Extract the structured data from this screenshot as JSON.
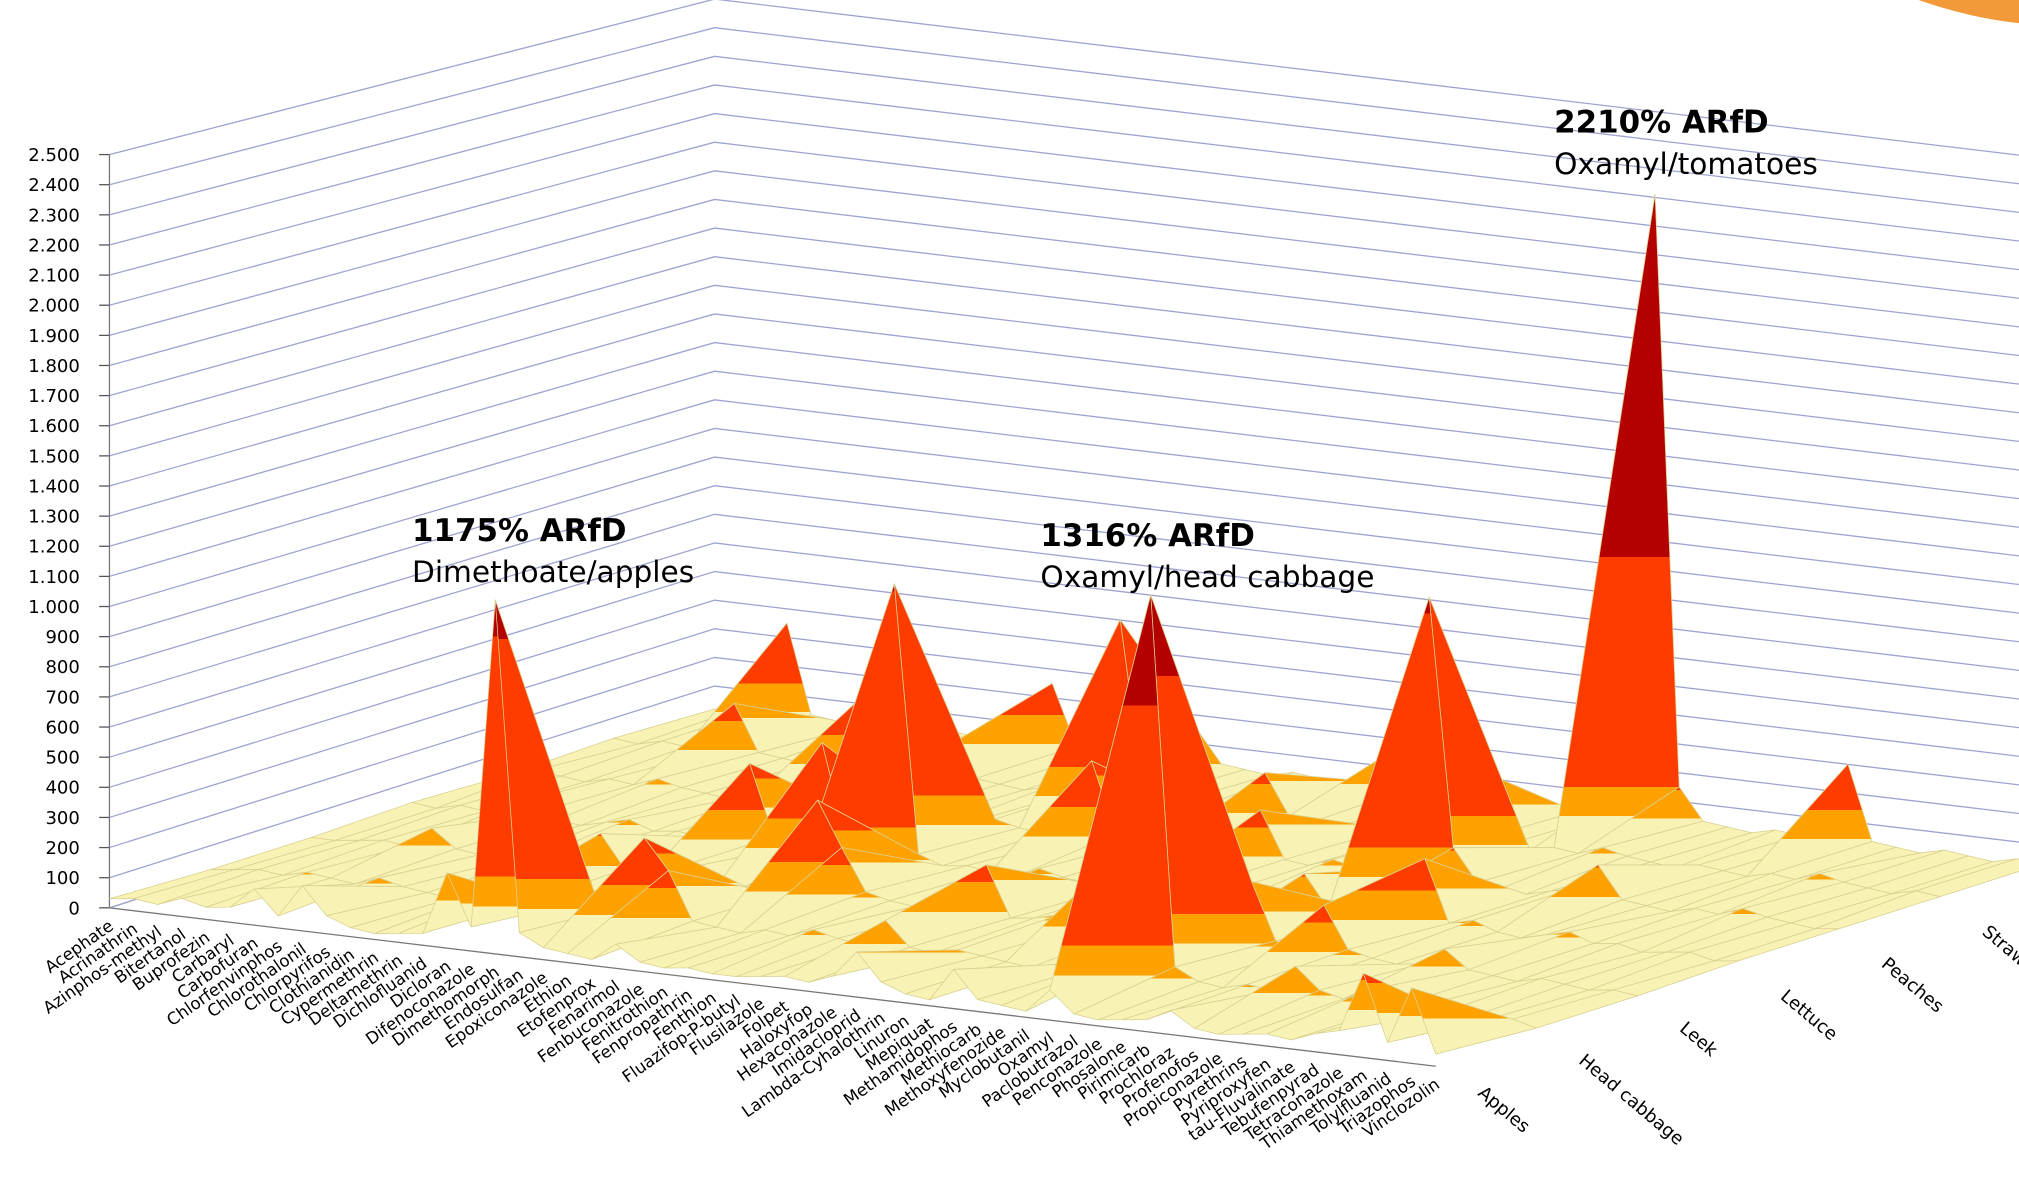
{
  "chart_data": {
    "type": "surface",
    "categories": [
      "Acephate",
      "Acrinathrin",
      "Azinphos-methyl",
      "Bitertanol",
      "Buprofezin",
      "Carbaryl",
      "Carbofuran",
      "Chlorfenvinphos",
      "Chlorothalonil",
      "Chlorpyrifos",
      "Clothianidin",
      "Cypermethrin",
      "Deltamethrin",
      "Dichlofluanid",
      "Dicloran",
      "Difenoconazole",
      "Dimethomorph",
      "Endosulfan",
      "Epoxiconazole",
      "Ethion",
      "Etofenprox",
      "Fenarimol",
      "Fenbuconazole",
      "Fenitrothion",
      "Fenpropathrin",
      "Fenthion",
      "Fluazifop-P-butyl",
      "Flusilazole",
      "Folpet",
      "Haloxyfop",
      "Hexaconazole",
      "Imidacloprid",
      "Lambda-Cyhalothrin",
      "Linuron",
      "Mepiquat",
      "Methamidophos",
      "Methiocarb",
      "Methoxyfenozide",
      "Myclobutanil",
      "Oxamyl",
      "Paclobutrazol",
      "Penconazole",
      "Phosalone",
      "Pirimicarb",
      "Prochloraz",
      "Profenofos",
      "Propiconazole",
      "Pyrethrins",
      "Pyriproxyfen",
      "tau-Fluvalinate",
      "Tebufenpyrad",
      "Tetraconazole",
      "Thiamethoxam",
      "Tolylfluanid",
      "Triazophos",
      "Vinclozolin"
    ],
    "series": [
      {
        "name": "Apples",
        "values": [
          30,
          40,
          30,
          60,
          40,
          50,
          120,
          40,
          150,
          60,
          30,
          20,
          30,
          40,
          250,
          80,
          1175,
          80,
          40,
          30,
          20,
          80,
          30,
          20,
          30,
          20,
          20,
          30,
          40,
          30,
          60,
          150,
          60,
          30,
          20,
          130,
          40,
          30,
          20,
          100,
          30,
          20,
          30,
          40,
          80,
          30,
          20,
          30,
          40,
          30,
          60,
          80,
          280,
          60,
          250,
          40
        ]
      },
      {
        "name": "Head cabbage",
        "values": [
          20,
          30,
          40,
          30,
          50,
          40,
          30,
          60,
          40,
          30,
          20,
          40,
          60,
          30,
          40,
          50,
          80,
          60,
          300,
          200,
          40,
          30,
          20,
          40,
          30,
          60,
          40,
          30,
          120,
          40,
          30,
          50,
          40,
          30,
          20,
          40,
          30,
          60,
          80,
          1316,
          80,
          40,
          30,
          50,
          40,
          130,
          60,
          40,
          80,
          30,
          40,
          30,
          20,
          30,
          40,
          20
        ]
      },
      {
        "name": "Leek",
        "values": [
          20,
          20,
          30,
          40,
          30,
          100,
          40,
          30,
          20,
          30,
          40,
          30,
          150,
          40,
          30,
          60,
          80,
          40,
          30,
          20,
          40,
          350,
          200,
          60,
          40,
          30,
          20,
          40,
          200,
          30,
          40,
          60,
          30,
          250,
          40,
          30,
          20,
          40,
          60,
          250,
          60,
          40,
          200,
          60,
          40,
          30,
          40,
          100,
          40,
          30,
          20,
          40,
          30,
          20,
          30,
          20
        ]
      },
      {
        "name": "Lettuce",
        "values": [
          30,
          20,
          40,
          30,
          60,
          40,
          30,
          20,
          40,
          60,
          30,
          40,
          30,
          20,
          300,
          60,
          40,
          400,
          80,
          40,
          970,
          60,
          30,
          40,
          30,
          20,
          60,
          40,
          30,
          20,
          40,
          60,
          40,
          30,
          20,
          40,
          60,
          150,
          40,
          60,
          40,
          30,
          250,
          40,
          60,
          30,
          20,
          40,
          60,
          30,
          40,
          20,
          30,
          40,
          20,
          30
        ]
      },
      {
        "name": "Peaches",
        "values": [
          20,
          40,
          30,
          20,
          40,
          30,
          60,
          40,
          30,
          20,
          40,
          30,
          20,
          40,
          30,
          60,
          40,
          30,
          20,
          40,
          60,
          40,
          30,
          20,
          300,
          60,
          40,
          30,
          20,
          40,
          30,
          200,
          40,
          30,
          60,
          40,
          30,
          60,
          1000,
          150,
          40,
          30,
          20,
          40,
          60,
          150,
          40,
          30,
          20,
          40,
          30,
          60,
          40,
          30,
          20,
          30
        ]
      },
      {
        "name": "Strawberries",
        "values": [
          30,
          20,
          40,
          30,
          20,
          200,
          40,
          30,
          20,
          40,
          250,
          40,
          30,
          20,
          150,
          40,
          30,
          20,
          40,
          30,
          60,
          650,
          40,
          30,
          20,
          40,
          30,
          180,
          40,
          30,
          20,
          40,
          30,
          20,
          40,
          300,
          40,
          30,
          20,
          40,
          30,
          60,
          40,
          30,
          20,
          40,
          30,
          20,
          40,
          30,
          60,
          40,
          30,
          20,
          40,
          30
        ]
      },
      {
        "name": "Tomatoes",
        "values": [
          20,
          30,
          40,
          350,
          40,
          30,
          20,
          40,
          30,
          20,
          40,
          30,
          20,
          40,
          250,
          40,
          30,
          20,
          40,
          30,
          20,
          40,
          30,
          20,
          40,
          30,
          20,
          40,
          150,
          40,
          30,
          20,
          40,
          30,
          20,
          40,
          30,
          20,
          150,
          2210,
          150,
          40,
          30,
          20,
          40,
          30,
          20,
          300,
          40,
          30,
          20,
          40,
          30,
          20,
          40,
          30
        ]
      }
    ],
    "colors": [
      "#f8f2b4",
      "#ffa200",
      "#ff3c00",
      "#b40000"
    ],
    "ylim": [
      0,
      2500
    ],
    "yticks": [
      0,
      100,
      200,
      300,
      400,
      500,
      600,
      700,
      800,
      900,
      {
        "value": 1000,
        "label": "1.000"
      },
      {
        "value": 1100,
        "label": "1.100"
      },
      {
        "value": 1200,
        "label": "1.200"
      },
      {
        "value": 1300,
        "label": "1.300"
      },
      {
        "value": 1400,
        "label": "1.400"
      },
      {
        "value": 1500,
        "label": "1.500"
      },
      {
        "value": 1600,
        "label": "1.600"
      },
      {
        "value": 1700,
        "label": "1.700"
      },
      {
        "value": 1800,
        "label": "1.800"
      },
      {
        "value": 1900,
        "label": "1.900"
      },
      {
        "value": 2000,
        "label": "2.000"
      },
      {
        "value": 2100,
        "label": "2.100"
      },
      {
        "value": 2200,
        "label": "2.200"
      },
      {
        "value": 2300,
        "label": "2.300"
      },
      {
        "value": 2400,
        "label": "2.400"
      },
      {
        "value": 2500,
        "label": "2.500"
      }
    ],
    "grid": true,
    "annotations": [
      {
        "title": "1175% ARfD",
        "text": "Dimethoate/apples"
      },
      {
        "title": "1316% ARfD",
        "text": "Oxamyl/head cabbage"
      },
      {
        "title": "2210% ARfD",
        "text": "Oxamyl/tomatoes"
      }
    ]
  }
}
